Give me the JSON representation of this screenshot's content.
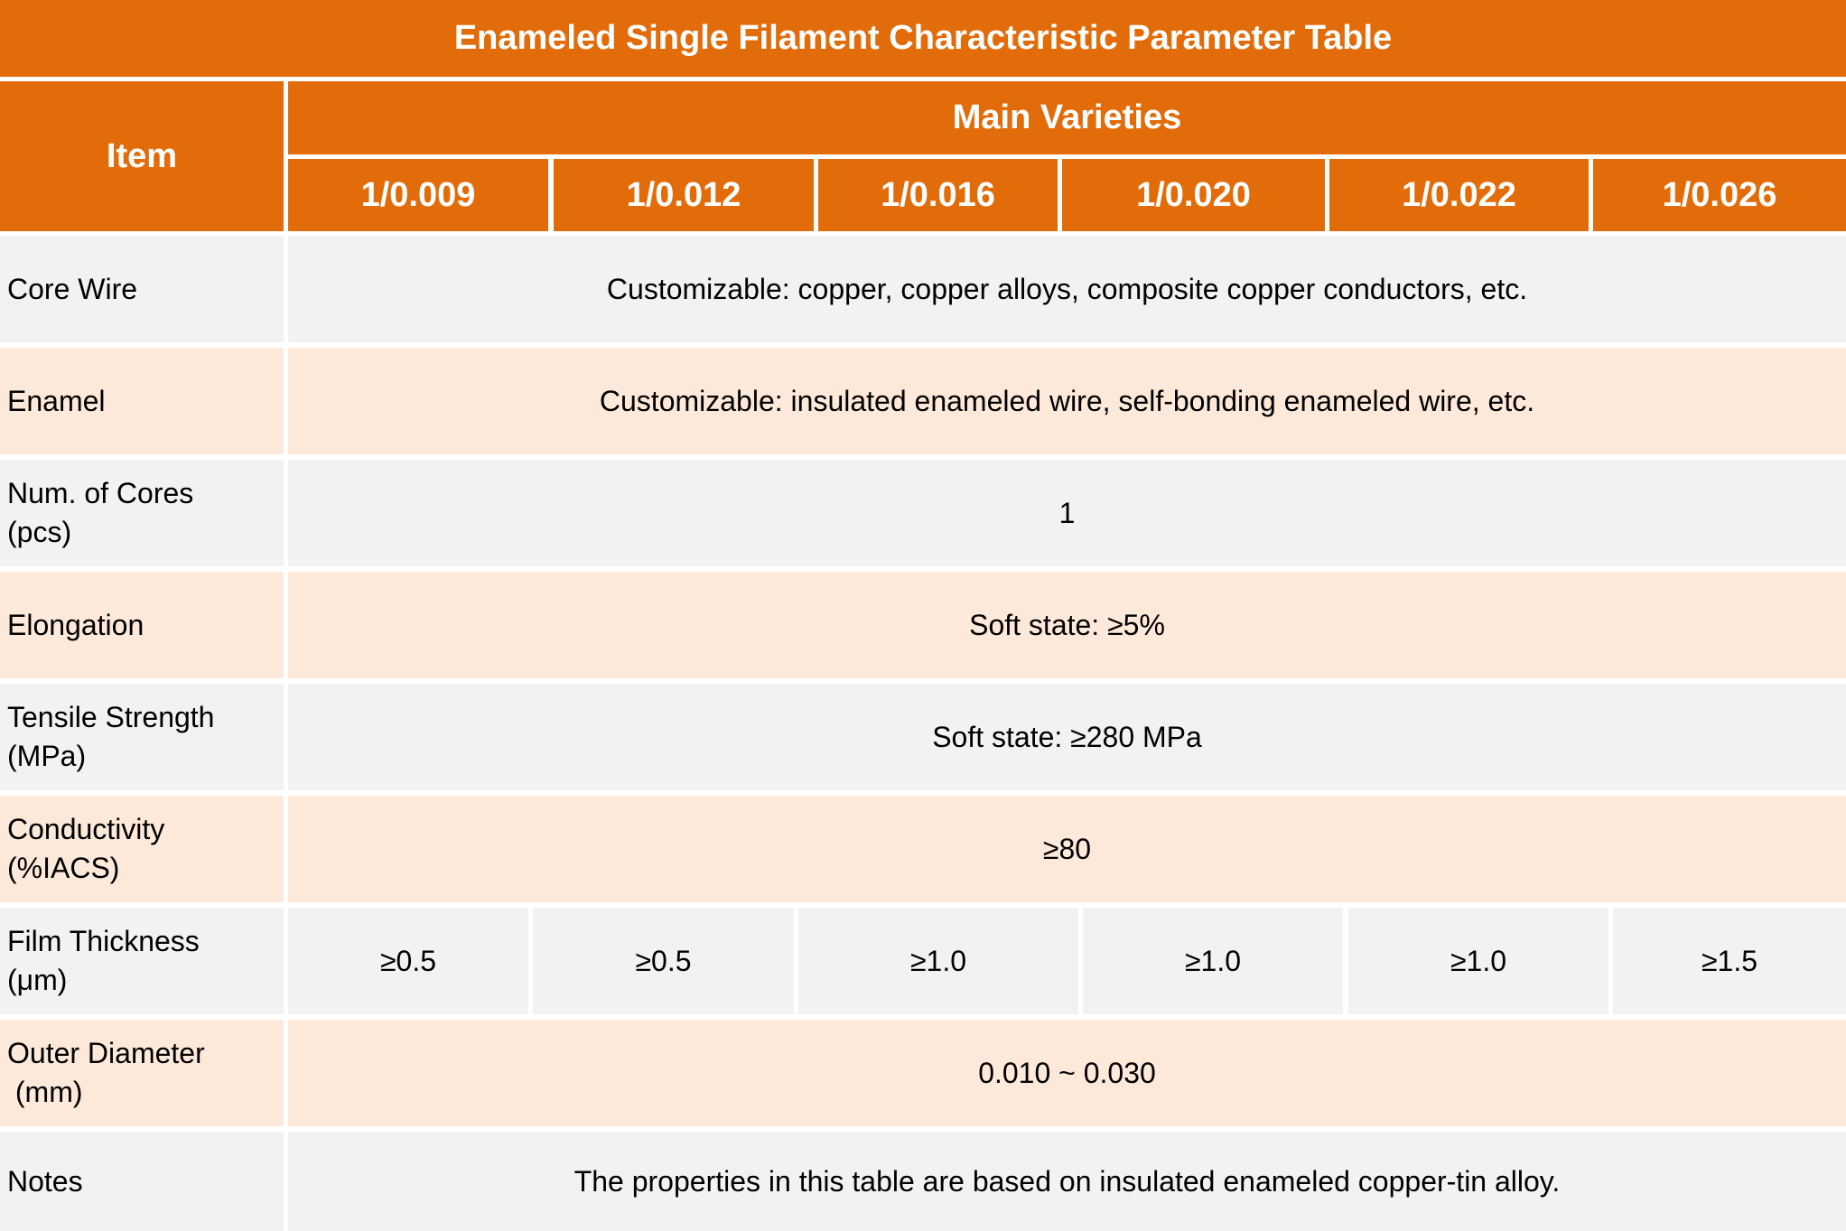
{
  "title": "Enameled Single Filament Characteristic Parameter Table",
  "header": {
    "item": "Item",
    "main_varieties": "Main Varieties",
    "varieties": [
      "1/0.009",
      "1/0.012",
      "1/0.016",
      "1/0.020",
      "1/0.022",
      "1/0.026"
    ]
  },
  "colors": {
    "header": "#E36C0A",
    "row_gray": "#F2F2F2",
    "row_peach": "#FDE9D9"
  },
  "rows": [
    {
      "label": "Core Wire",
      "value": "Customizable: copper, copper alloys, composite copper conductors, etc."
    },
    {
      "label": "Enamel",
      "value": "Customizable: insulated enameled wire, self-bonding enameled wire, etc."
    },
    {
      "label": "Num. of Cores\n(pcs)",
      "value": "1"
    },
    {
      "label": "Elongation",
      "value": "Soft state: ≥5%"
    },
    {
      "label": "Tensile Strength\n(MPa)",
      "value": "Soft state: ≥280 MPa"
    },
    {
      "label": "Conductivity\n(%IACS)",
      "value": "≥80"
    },
    {
      "label": "Film Thickness\n(μm)",
      "values": [
        "≥0.5",
        "≥0.5",
        "≥1.0",
        "≥1.0",
        "≥1.0",
        "≥1.5"
      ]
    },
    {
      "label": "Outer Diameter\n (mm)",
      "value": "0.010 ~ 0.030"
    },
    {
      "label": "Notes",
      "value": "The properties in this table are based on insulated enameled copper-tin alloy."
    }
  ]
}
